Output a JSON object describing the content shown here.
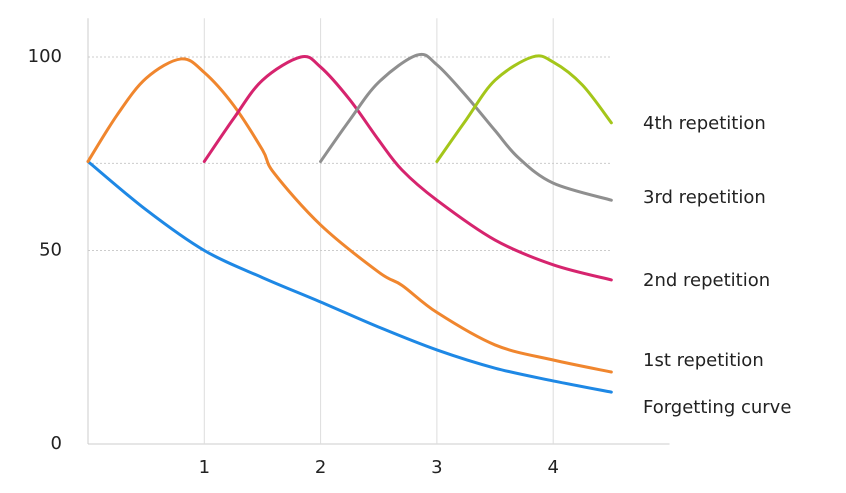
{
  "chart_data": {
    "type": "line",
    "xlim": [
      0,
      5
    ],
    "xticks": [
      1,
      2,
      3,
      4
    ],
    "ylim": [
      0,
      110
    ],
    "yticks": [
      0,
      50,
      100
    ],
    "reference_y": 72.5,
    "grid": true,
    "series": [
      {
        "name": "Forgetting curve",
        "color": "#1e88e5",
        "x": [
          0,
          0.5,
          1,
          1.5,
          2,
          2.5,
          3,
          3.5,
          4,
          4.5
        ],
        "values": [
          73,
          60.5,
          50,
          43,
          36.7,
          30.2,
          24.3,
          19.6,
          16.3,
          13.4
        ]
      },
      {
        "name": "1st repetition",
        "color": "#f0862e",
        "x": [
          0,
          0.25,
          0.5,
          0.8,
          1,
          1.25,
          1.5,
          1.6,
          2,
          2.5,
          2.7,
          3,
          3.5,
          4,
          4.5
        ],
        "values": [
          73,
          85,
          94.5,
          99.5,
          96,
          87.6,
          76,
          70,
          56.6,
          44.4,
          41,
          34,
          25.6,
          21.7,
          18.6
        ]
      },
      {
        "name": "2nd repetition",
        "color": "#d6246e",
        "x": [
          1,
          1.25,
          1.5,
          1.83,
          2,
          2.25,
          2.5,
          2.7,
          3,
          3.5,
          4,
          4.5
        ],
        "values": [
          73,
          84,
          94,
          100,
          97.4,
          89,
          78.5,
          70.8,
          63,
          52.7,
          46.3,
          42.4
        ]
      },
      {
        "name": "3rd repetition",
        "color": "#8f8f8f",
        "x": [
          2,
          2.25,
          2.5,
          2.83,
          3,
          3.25,
          3.5,
          3.7,
          4,
          4.5
        ],
        "values": [
          73,
          83.7,
          93.5,
          100.5,
          98,
          90,
          81,
          74,
          67.4,
          63
        ]
      },
      {
        "name": "4th repetition",
        "color": "#a4c61a",
        "x": [
          3,
          3.25,
          3.5,
          3.82,
          4,
          4.25,
          4.5
        ],
        "values": [
          73,
          83.7,
          94,
          100,
          98.7,
          92.8,
          83
        ]
      }
    ]
  }
}
